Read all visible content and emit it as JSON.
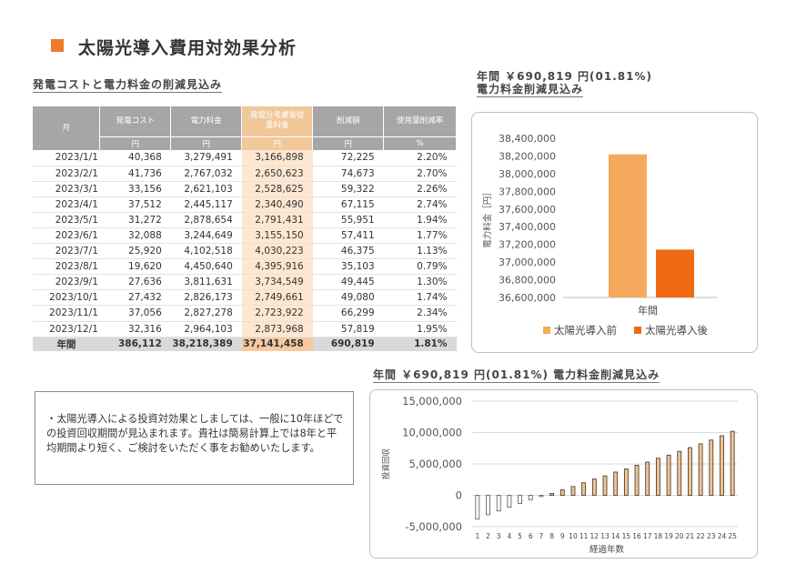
{
  "page_title": "太陽光導入費用対効果分析",
  "table_section_title": "発電コストと電力料金の削減見込み",
  "table": {
    "headers": [
      "月",
      "発電コスト",
      "電力料金",
      "発電分考慮後従量料金",
      "削減額",
      "使用量削減率"
    ],
    "header_line1": "発電分考慮後従",
    "header_line2": "量料金",
    "units": [
      "円",
      "円",
      "円",
      "円",
      "%"
    ],
    "rows": [
      [
        "2023/1/1",
        "40,368",
        "3,279,491",
        "3,166,898",
        "72,225",
        "2.20%"
      ],
      [
        "2023/2/1",
        "41,736",
        "2,767,032",
        "2,650,623",
        "74,673",
        "2.70%"
      ],
      [
        "2023/3/1",
        "33,156",
        "2,621,103",
        "2,528,625",
        "59,322",
        "2.26%"
      ],
      [
        "2023/4/1",
        "37,512",
        "2,445,117",
        "2,340,490",
        "67,115",
        "2.74%"
      ],
      [
        "2023/5/1",
        "31,272",
        "2,878,654",
        "2,791,431",
        "55,951",
        "1.94%"
      ],
      [
        "2023/6/1",
        "32,088",
        "3,244,649",
        "3,155,150",
        "57,411",
        "1.77%"
      ],
      [
        "2023/7/1",
        "25,920",
        "4,102,518",
        "4,030,223",
        "46,375",
        "1.13%"
      ],
      [
        "2023/8/1",
        "19,620",
        "4,450,640",
        "4,395,916",
        "35,103",
        "0.79%"
      ],
      [
        "2023/9/1",
        "27,636",
        "3,811,631",
        "3,734,549",
        "49,445",
        "1.30%"
      ],
      [
        "2023/10/1",
        "27,432",
        "2,826,173",
        "2,749,661",
        "49,080",
        "1.74%"
      ],
      [
        "2023/11/1",
        "37,056",
        "2,827,278",
        "2,723,922",
        "66,299",
        "2.34%"
      ],
      [
        "2023/12/1",
        "32,316",
        "2,964,103",
        "2,873,968",
        "57,819",
        "1.95%"
      ]
    ],
    "total": [
      "年間",
      "386,112",
      "38,218,389",
      "37,141,458",
      "690,819",
      "1.81%"
    ]
  },
  "bar_section_title_line1": "年間 ￥690,819 円(01.81%)",
  "bar_section_title_line2": "電力料金削減見込み",
  "line_section_title": "年間 ￥690,819 円(01.81%) 電力料金削減見込み",
  "note_text": "・太陽光導入による投資対効果としましては、一般に10年ほどでの投資回収期間が見込まれます。貴社は簡易計算上では8年と平均期間より短く、ご検討をいただく事をお勧めいたします。",
  "colors": {
    "accent": "#f07a2a",
    "before": "#f5a95d",
    "after": "#f06a14",
    "highlight": "#fde7d1"
  },
  "chart_data": [
    {
      "type": "bar",
      "title": "年間 ￥690,819 円(01.81%) 電力料金削減見込み",
      "categories": [
        "年間"
      ],
      "series": [
        {
          "name": "太陽光導入前",
          "values": [
            38218389
          ],
          "color": "#f5a95d"
        },
        {
          "name": "太陽光導入後",
          "values": [
            37141458
          ],
          "color": "#f06a14"
        }
      ],
      "xlabel": "年間",
      "ylabel": "電力料金［円］",
      "ylim": [
        36600000,
        38400000
      ],
      "yticks": [
        36600000,
        36800000,
        37000000,
        37200000,
        37400000,
        37600000,
        37800000,
        38000000,
        38200000,
        38400000
      ],
      "ytick_labels": [
        "36,600,000",
        "36,800,000",
        "37,000,000",
        "37,200,000",
        "37,400,000",
        "37,600,000",
        "37,800,000",
        "38,000,000",
        "38,200,000",
        "38,400,000"
      ],
      "legend": "bottom"
    },
    {
      "type": "bar",
      "title": "年間 ￥690,819 円(01.81%) 電力料金削減見込み",
      "categories": [
        "1",
        "2",
        "3",
        "4",
        "5",
        "6",
        "7",
        "8",
        "9",
        "10",
        "11",
        "12",
        "13",
        "14",
        "15",
        "16",
        "17",
        "18",
        "19",
        "20",
        "21",
        "22",
        "23",
        "24",
        "25"
      ],
      "values": [
        -3800000,
        -3100000,
        -2500000,
        -1900000,
        -1300000,
        -700000,
        -200000,
        300000,
        900000,
        1400000,
        2000000,
        2600000,
        3100000,
        3700000,
        4200000,
        4800000,
        5300000,
        5900000,
        6400000,
        7000000,
        7600000,
        8200000,
        8800000,
        9500000,
        10200000
      ],
      "xlabel": "経過年数",
      "ylabel": "投資回収",
      "ylim": [
        -5000000,
        15000000
      ],
      "yticks": [
        -5000000,
        0,
        5000000,
        10000000,
        15000000
      ],
      "ytick_labels": [
        "-5,000,000",
        "0",
        "5,000,000",
        "10,000,000",
        "15,000,000"
      ],
      "grid": true
    }
  ]
}
